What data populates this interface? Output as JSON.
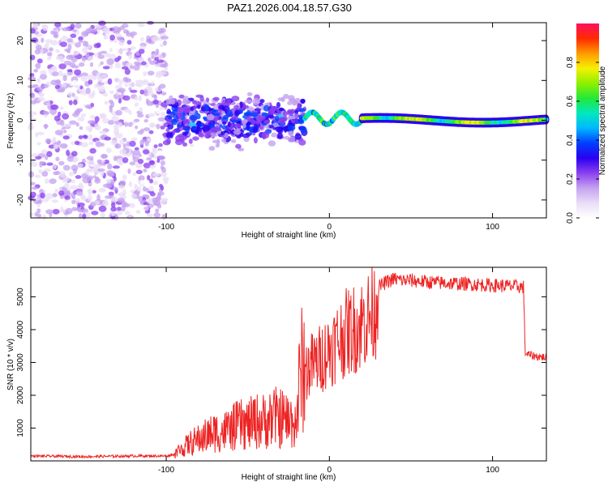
{
  "title": "PAZ1.2026.004.18.57.G30",
  "colors": {
    "snr_line": "#ee2222",
    "colormap": [
      "#ffffff",
      "#e9ddf7",
      "#c4a2f0",
      "#8b3ff0",
      "#2a00f0",
      "#0040ff",
      "#00b7ff",
      "#00e8c0",
      "#23e83a",
      "#8ef000",
      "#f5f000",
      "#ff9b00",
      "#ff2a00",
      "#ff1060"
    ]
  },
  "chart_data": [
    {
      "type": "heatmap",
      "name": "spectrogram",
      "title": "PAZ1.2026.004.18.57.G30",
      "xlabel": "Height of straight line (km)",
      "ylabel": "Frequency (Hz)",
      "xlim": [
        -183,
        133
      ],
      "ylim": [
        -24.5,
        24.5
      ],
      "xticks": [
        -100,
        0,
        100
      ],
      "yticks": [
        -20,
        -10,
        0,
        10,
        20
      ],
      "colorbar": {
        "label": "Normalized spectral amplitude",
        "range": [
          0.0,
          1.0
        ],
        "ticks": [
          0.0,
          0.2,
          0.4,
          0.6,
          0.8
        ],
        "tick_labels": [
          "0.0",
          "0.2",
          "0.4",
          "0.6",
          "0.8"
        ]
      },
      "regions": [
        {
          "description": "scattered noise",
          "x_range": [
            -183,
            -100
          ],
          "freq_range": [
            -24.5,
            24.5
          ],
          "amplitude": 0.15
        },
        {
          "description": "broad signal",
          "x_range": [
            -100,
            -15
          ],
          "freq_range": [
            -8,
            8
          ],
          "amplitude": 0.3
        },
        {
          "description": "converging tone",
          "x_range": [
            -15,
            20
          ],
          "freq_range": [
            -2,
            4
          ],
          "amplitude": 0.55
        },
        {
          "description": "stable tone near 0 Hz",
          "x_range": [
            20,
            133
          ],
          "freq_range": [
            -1.5,
            1.5
          ],
          "amplitude": 0.75
        }
      ]
    },
    {
      "type": "line",
      "name": "snr",
      "title": "",
      "xlabel": "Height of straight line (km)",
      "ylabel": "SNR (10 * v/v)",
      "xlim": [
        -183,
        133
      ],
      "ylim": [
        0,
        5900
      ],
      "xticks": [
        -100,
        0,
        100
      ],
      "yticks": [
        1000,
        2000,
        3000,
        4000,
        5000
      ],
      "series": [
        {
          "name": "SNR",
          "x": [
            -183,
            -150,
            -120,
            -100,
            -95,
            -90,
            -85,
            -80,
            -75,
            -70,
            -65,
            -60,
            -55,
            -50,
            -45,
            -40,
            -35,
            -30,
            -25,
            -20,
            -18,
            -15,
            -12,
            -8,
            -5,
            -2,
            0,
            3,
            6,
            10,
            14,
            18,
            22,
            25,
            28,
            30,
            35,
            40,
            45,
            50,
            60,
            70,
            80,
            90,
            100,
            110,
            119,
            120,
            121,
            125,
            133
          ],
          "y": [
            150,
            130,
            150,
            150,
            200,
            350,
            500,
            600,
            700,
            800,
            800,
            900,
            1000,
            1000,
            1100,
            1100,
            1200,
            1200,
            1100,
            1100,
            2400,
            2700,
            2900,
            3000,
            3150,
            3300,
            3400,
            3550,
            3700,
            3900,
            4000,
            4100,
            4300,
            4400,
            4600,
            5300,
            5450,
            5550,
            5500,
            5500,
            5450,
            5420,
            5400,
            5380,
            5350,
            5330,
            5300,
            3300,
            3250,
            3200,
            3150
          ]
        }
      ]
    }
  ]
}
